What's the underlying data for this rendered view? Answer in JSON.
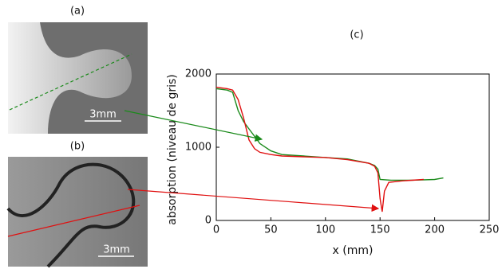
{
  "panels": [
    {
      "label": "(a)",
      "scale": "3mm"
    },
    {
      "label": "(b)",
      "scale": "3mm"
    }
  ],
  "chart_data": {
    "type": "line",
    "title": "(c)",
    "x_label": "x (mm)",
    "y_label": "absorption (niveau de gris)",
    "xlim": [
      0,
      250
    ],
    "xticks": [
      0,
      50,
      100,
      150,
      200,
      250
    ],
    "ylim": [
      0,
      2000
    ],
    "yticks": [
      0,
      1000,
      2000
    ],
    "series": [
      {
        "color": "#1a8a1a",
        "x": [
          0,
          10,
          15,
          20,
          25,
          30,
          35,
          40,
          50,
          60,
          80,
          100,
          120,
          140,
          145,
          148,
          150,
          160,
          180,
          200,
          208
        ],
        "values": [
          1800,
          1780,
          1750,
          1500,
          1350,
          1250,
          1150,
          1050,
          950,
          900,
          880,
          860,
          840,
          780,
          750,
          700,
          560,
          550,
          550,
          560,
          580
        ]
      },
      {
        "color": "#e01010",
        "x": [
          0,
          10,
          15,
          20,
          25,
          30,
          35,
          40,
          50,
          60,
          80,
          100,
          120,
          140,
          145,
          148,
          150,
          152,
          154,
          158,
          170,
          190
        ],
        "values": [
          1820,
          1800,
          1780,
          1650,
          1400,
          1100,
          980,
          930,
          900,
          880,
          870,
          860,
          830,
          780,
          740,
          650,
          300,
          120,
          400,
          520,
          540,
          560
        ]
      }
    ]
  }
}
